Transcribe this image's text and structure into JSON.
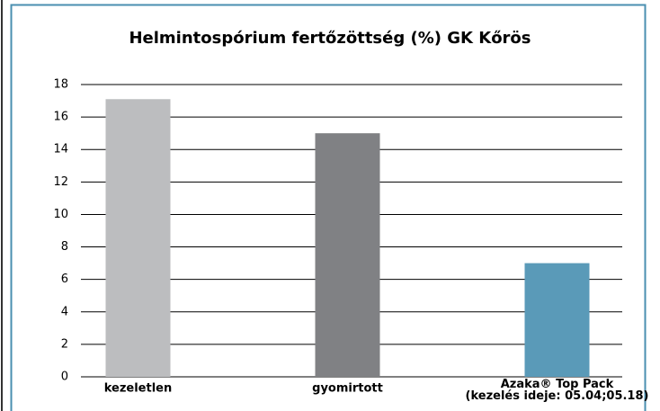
{
  "chart_data": {
    "type": "bar",
    "title": "Helmintospórium fertőzöttség (%) GK Kőrös",
    "categories": [
      "kezeletlen",
      "gyomirtott",
      "Azaka® Top Pack\n(kezelés ideje: 05.04;05.18)"
    ],
    "values": [
      17.1,
      15,
      7
    ],
    "colors": [
      "#bcbdbf",
      "#808184",
      "#5a9ab8"
    ],
    "ylim": [
      0,
      18
    ],
    "yticks": [
      0,
      2,
      4,
      6,
      8,
      10,
      12,
      14,
      16,
      18
    ],
    "grid": true
  }
}
